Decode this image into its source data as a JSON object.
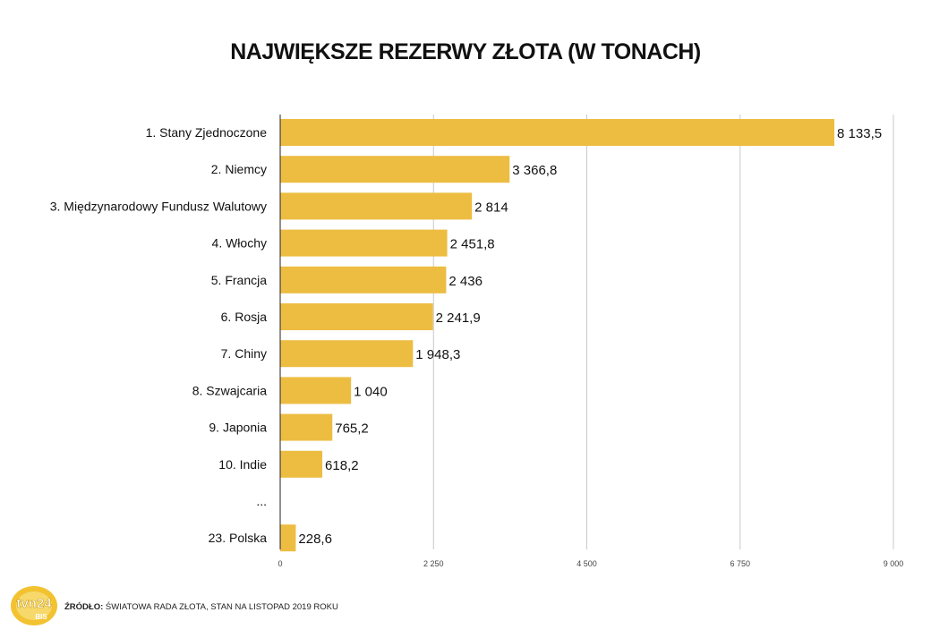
{
  "chart_data": {
    "type": "bar",
    "orientation": "horizontal",
    "title": "NAJWIĘKSZE REZERWY ZŁOTA (W TONACH)",
    "categories": [
      "1. Stany Zjednoczone",
      "2. Niemcy",
      "3. Międzynarodowy Fundusz Walutowy",
      "4. Włochy",
      "5. Francja",
      "6. Rosja",
      "7. Chiny",
      "8. Szwajcaria",
      "9. Japonia",
      "10. Indie",
      "...",
      "23. Polska"
    ],
    "values": [
      8133.5,
      3366.8,
      2814,
      2451.8,
      2436,
      2241.9,
      1948.3,
      1040,
      765.2,
      618.2,
      null,
      228.6
    ],
    "value_labels": [
      "8 133,5",
      "3 366,8",
      "2 814",
      "2 451,8",
      "2 436",
      "2 241,9",
      "1 948,3",
      "1 040",
      "765,2",
      "618,2",
      "",
      "228,6"
    ],
    "xlim": [
      0,
      9000
    ],
    "xticks": [
      0,
      2250,
      4500,
      6750,
      9000
    ],
    "xtick_labels": [
      "0",
      "2 250",
      "4 500",
      "6 750",
      "9 000"
    ],
    "grid": true,
    "bar_color": "#EDBD42"
  },
  "footer": {
    "source_label": "ŹRÓDŁO:",
    "source_text": "ŚWIATOWA RADA ZŁOTA, STAN NA LISTOPAD 2019 ROKU"
  },
  "logo": {
    "text": "tvn24",
    "subtext": "BIS",
    "icon": "tvn24-bis-logo"
  }
}
